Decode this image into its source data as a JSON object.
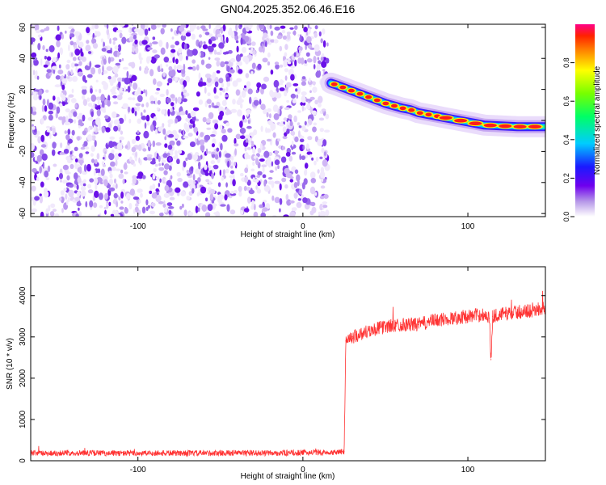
{
  "figure": {
    "title": "GN04.2025.352.06.46.E16"
  },
  "chart_data": [
    {
      "type": "heatmap",
      "xlabel": "Height of straight line (km)",
      "ylabel": "Frequency (Hz)",
      "xlim": [
        -165,
        147
      ],
      "ylim": [
        -62,
        62
      ],
      "x_ticks": [
        -100,
        0,
        100
      ],
      "x_tick_labels": [
        "-100",
        "0",
        "100"
      ],
      "y_ticks": [
        60,
        40,
        20,
        0,
        -20,
        -40,
        -60
      ],
      "y_tick_labels": [
        "60",
        "40",
        "20",
        "0",
        "-20",
        "-40",
        "-60"
      ],
      "grid": false,
      "noise_region_x": [
        -165,
        15
      ],
      "trace": {
        "x": [
          17,
          20,
          25,
          30,
          35,
          40,
          45,
          50,
          55,
          60,
          65,
          70,
          75,
          80,
          85,
          90,
          95,
          100,
          105,
          110,
          120,
          130,
          140,
          147
        ],
        "y": [
          24,
          23,
          21,
          19,
          17,
          15,
          13,
          11,
          9.5,
          8,
          7,
          5,
          4,
          3,
          2,
          1,
          0,
          -1,
          -2,
          -3,
          -3.5,
          -4,
          -4,
          -4
        ]
      },
      "colorbar": {
        "label": "Normalized spectral amplitude",
        "range": [
          0,
          1
        ],
        "ticks": [
          0.0,
          0.2,
          0.4,
          0.6,
          0.8
        ],
        "tick_labels": [
          "0.0",
          "0.2",
          "0.4",
          "0.6",
          "0.8"
        ]
      }
    },
    {
      "type": "line",
      "xlabel": "Height of straight line (km)",
      "ylabel": "SNR (10 * v/v)",
      "xlim": [
        -165,
        147
      ],
      "ylim": [
        0,
        4700
      ],
      "x_ticks": [
        -100,
        0,
        100
      ],
      "x_tick_labels": [
        "-100",
        "0",
        "100"
      ],
      "y_ticks": [
        0,
        1000,
        2000,
        3000,
        4000
      ],
      "y_tick_labels": [
        "0",
        "1000",
        "2000",
        "3000",
        "4000"
      ],
      "grid": false,
      "series": [
        {
          "color": "#ff3333",
          "x": [
            -165,
            -140,
            -120,
            -100,
            -80,
            -60,
            -40,
            -20,
            0,
            10,
            20,
            25,
            26,
            30,
            40,
            50,
            60,
            70,
            80,
            90,
            100,
            110,
            113,
            114,
            115,
            120,
            130,
            140,
            147
          ],
          "y": [
            180,
            190,
            185,
            180,
            185,
            180,
            190,
            185,
            195,
            200,
            210,
            220,
            2900,
            3000,
            3150,
            3250,
            3300,
            3300,
            3400,
            3450,
            3500,
            3550,
            3450,
            2450,
            3500,
            3550,
            3600,
            3650,
            3700
          ]
        }
      ]
    }
  ],
  "colors": {
    "line": "#ff3333",
    "noise": "#7700ee",
    "axes": "#000000",
    "background": "#ffffff"
  }
}
